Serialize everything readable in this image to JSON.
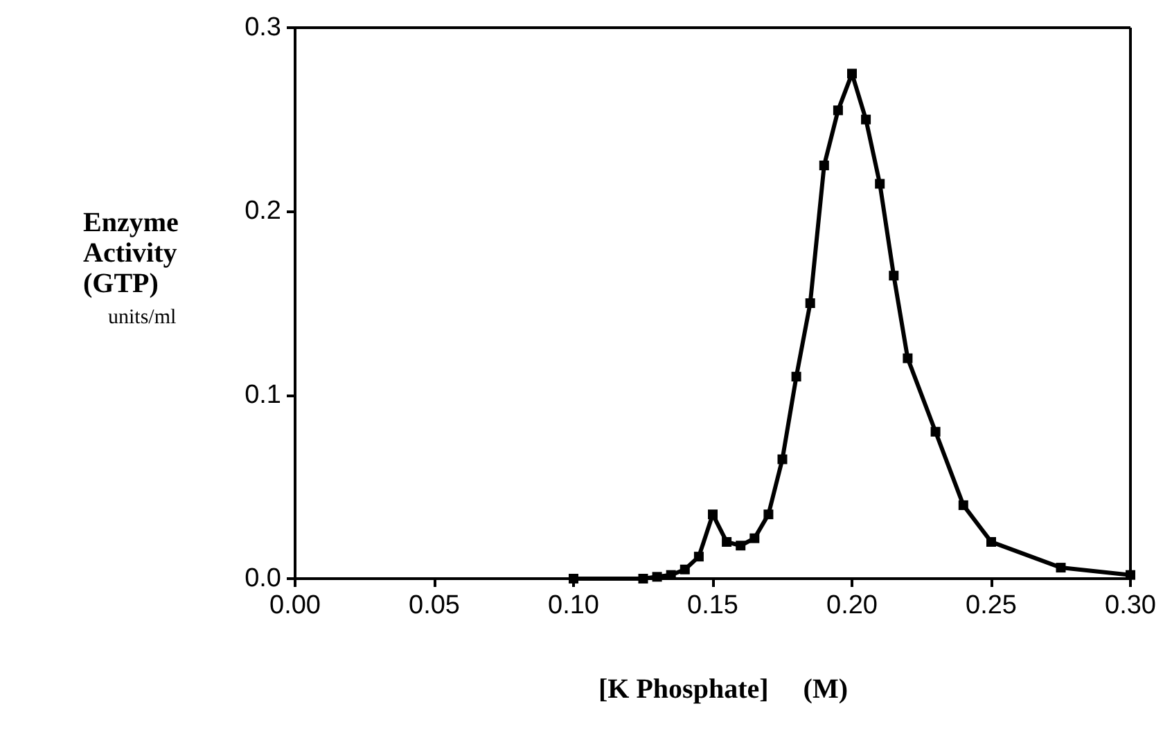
{
  "chart_data": {
    "type": "line",
    "xlabel": "[K Phosphate]     (M)",
    "ylabel": "Enzyme Activity (GTP)",
    "annotations": [
      "units/ml"
    ],
    "x": [
      0.1,
      0.125,
      0.13,
      0.135,
      0.14,
      0.145,
      0.15,
      0.155,
      0.16,
      0.165,
      0.17,
      0.175,
      0.18,
      0.185,
      0.19,
      0.195,
      0.2,
      0.205,
      0.21,
      0.215,
      0.22,
      0.23,
      0.24,
      0.25,
      0.275,
      0.3
    ],
    "series": [
      {
        "color": "#000000",
        "values": [
          0,
          0,
          0.001,
          0.002,
          0.005,
          0.012,
          0.035,
          0.02,
          0.018,
          0.022,
          0.035,
          0.065,
          0.11,
          0.15,
          0.225,
          0.255,
          0.275,
          0.25,
          0.215,
          0.165,
          0.12,
          0.08,
          0.04,
          0.02,
          0.006,
          0.002
        ]
      }
    ],
    "xlim": [
      0,
      0.3
    ],
    "xticks": [
      {
        "value": 0,
        "label": "0.00"
      },
      0.05,
      {
        "value": 0.1,
        "label": "0.10"
      },
      0.15,
      {
        "value": 0.2,
        "label": "0.20"
      },
      0.25,
      {
        "value": 0.3,
        "label": "0.30"
      }
    ],
    "ylim": [
      0,
      0.3
    ],
    "yticks": [
      {
        "value": 0,
        "label": "0.0"
      },
      0.1,
      0.2,
      0.3
    ],
    "grid": false,
    "marker": "square",
    "line_style": "solid"
  }
}
